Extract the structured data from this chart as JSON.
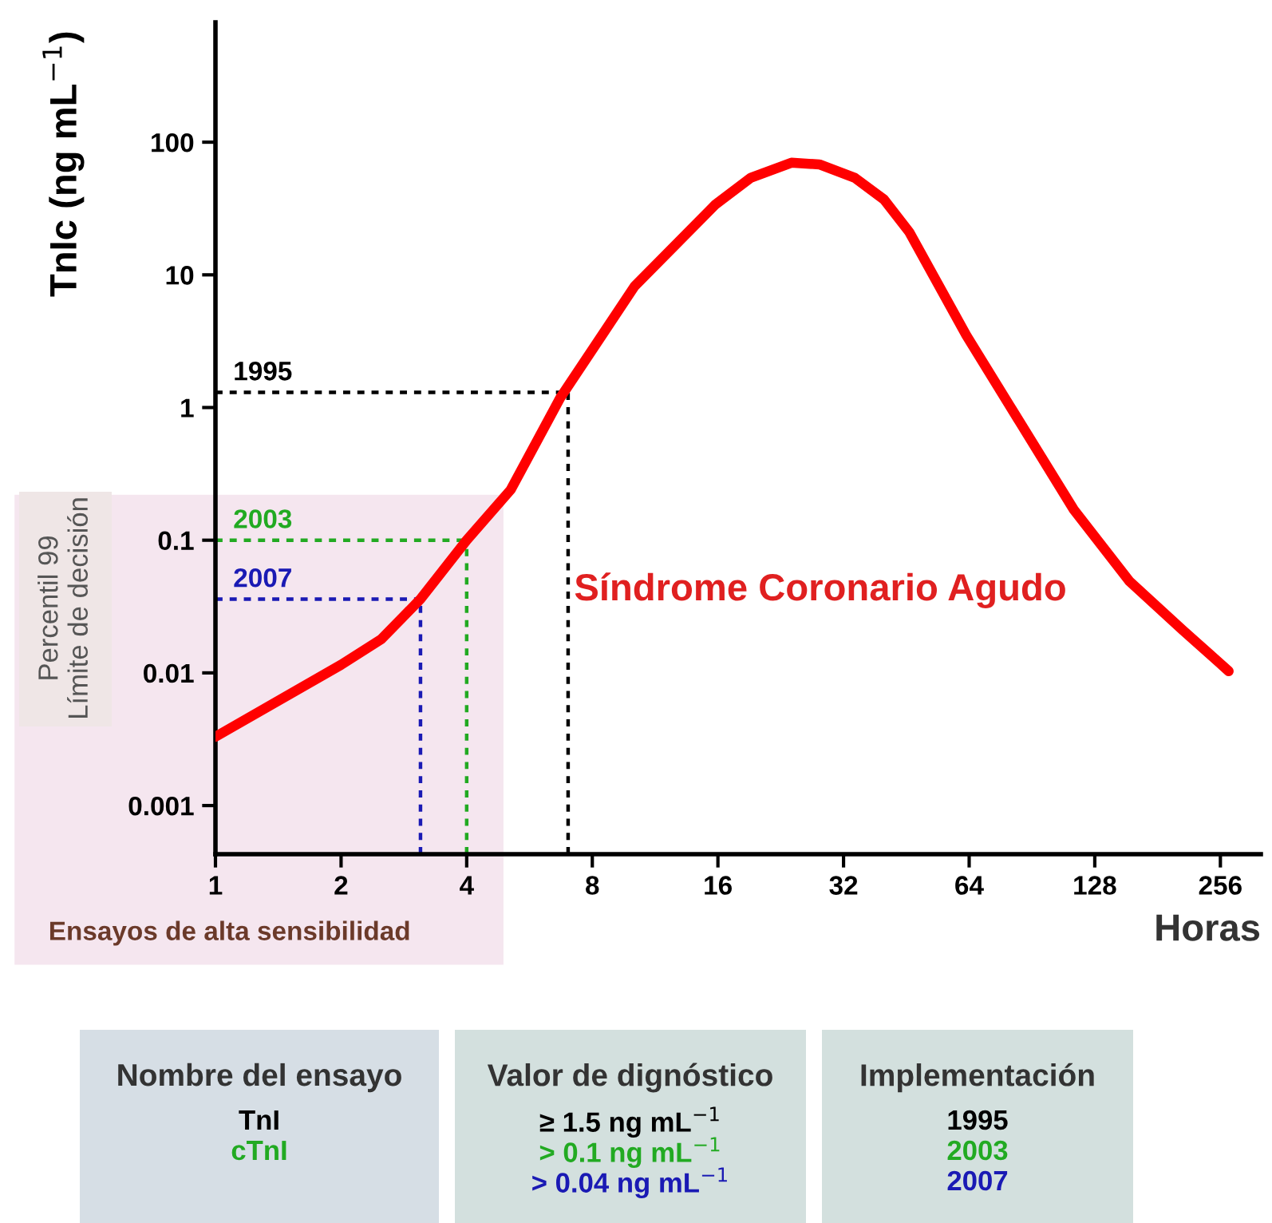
{
  "chart_data": {
    "type": "line",
    "xlabel": "Horas",
    "ylabel": "TnIc (ng mL$^{−1}$)",
    "log": "xy",
    "xlim": [
      1,
      320
    ],
    "ylim": [
      0.00043,
      800
    ],
    "xticks": [
      1,
      2,
      4,
      8,
      16,
      32,
      64,
      128,
      256
    ],
    "yticks": [
      0.001,
      0.01,
      0.1,
      1,
      10,
      100
    ],
    "grid": false,
    "legend": false,
    "marker": "none",
    "line_style": "solid",
    "series": [
      {
        "name": "Síndrome Coronario Agudo",
        "color": "#ff0000",
        "x": [
          1,
          2,
          2.5,
          3.1,
          4,
          5.1,
          6.7,
          10.1,
          15.8,
          19.2,
          24,
          28,
          34,
          40,
          46,
          63,
          85,
          114,
          155,
          208,
          268
        ],
        "values": [
          0.0033,
          0.0115,
          0.018,
          0.036,
          0.1,
          0.24,
          1.18,
          8.2,
          34,
          54,
          70,
          68,
          54,
          37,
          21,
          3.5,
          0.76,
          0.17,
          0.049,
          0.021,
          0.0103
        ]
      }
    ],
    "ref_lines": [
      {
        "axis": "y",
        "value": 1.3,
        "color": "#000000",
        "line_style": "dotted"
      },
      {
        "axis": "y",
        "value": 0.1,
        "color": "#22aa22",
        "line_style": "dotted"
      },
      {
        "axis": "y",
        "value": 0.036,
        "color": "#1a1ab4",
        "line_style": "dotted"
      },
      {
        "axis": "x",
        "value": 7,
        "color": "#000000",
        "line_style": "dotted"
      },
      {
        "axis": "x",
        "value": 4,
        "color": "#22aa22",
        "line_style": "dotted"
      },
      {
        "axis": "x",
        "value": 3.1,
        "color": "#1a1ab4",
        "line_style": "dotted"
      }
    ],
    "bands": [
      {
        "axis": "x",
        "from": 0.33,
        "to": 4.9,
        "label": "Ensayos de alta sensibilidad",
        "color": "#f5e6ef"
      }
    ],
    "annotations": [
      "1995",
      "2003",
      "2007",
      "Percentil 99\nLímite de decisión",
      "Nombre del ensayo",
      "Valor de dignóstico",
      "Implementación",
      "TnI",
      "≥ 1.5 ng mL$^{−1}$",
      "1995",
      "cTnI",
      "> 0.1 ng mL$^{−1}$",
      "2003",
      null,
      "> 0.04 ng mL$^{−1}$",
      "2007"
    ]
  }
}
